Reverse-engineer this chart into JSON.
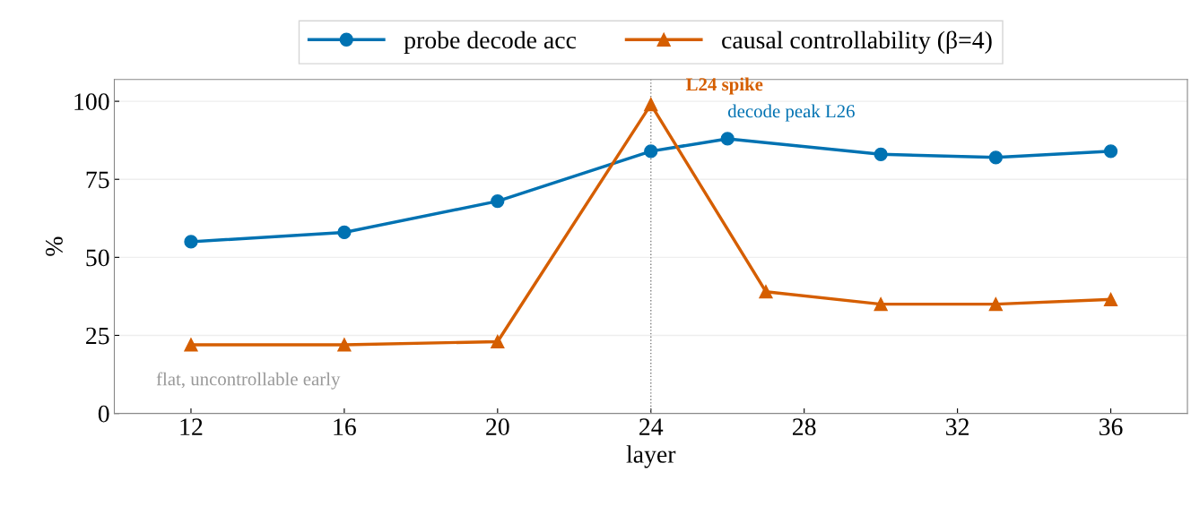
{
  "chart_data": {
    "type": "line",
    "xlabel": "layer",
    "ylabel": "%",
    "x": [
      12,
      16,
      20,
      24,
      26,
      30,
      33,
      36
    ],
    "series": [
      {
        "name": "probe decode acc",
        "color": "#0072b2",
        "marker": "circle",
        "values": [
          55,
          58,
          68,
          84,
          88,
          83,
          82,
          84
        ]
      },
      {
        "name": "causal controllability (β=4)",
        "color": "#d55e00",
        "marker": "triangle",
        "x": [
          12,
          16,
          20,
          24,
          27,
          30,
          33,
          36
        ],
        "values": [
          22,
          22,
          23,
          99,
          39,
          35,
          35,
          36.5
        ]
      }
    ],
    "xlim": [
      10,
      38
    ],
    "xticks": [
      12,
      16,
      20,
      24,
      28,
      32,
      36
    ],
    "ylim": [
      0,
      107
    ],
    "yticks": [
      0,
      25,
      50,
      75,
      100
    ],
    "grid": "y",
    "legend": "top",
    "ref_lines": [
      {
        "axis": "x",
        "value": 24,
        "color": "#808080",
        "line_style": "dotted"
      }
    ],
    "annotations": [
      {
        "text": "L24 spike",
        "x": 24,
        "y": 99
      },
      {
        "text": "decode peak L26",
        "x": 26,
        "y": 88
      },
      {
        "text": "flat, uncontrollable early",
        "x": 12,
        "y": 22
      }
    ]
  }
}
